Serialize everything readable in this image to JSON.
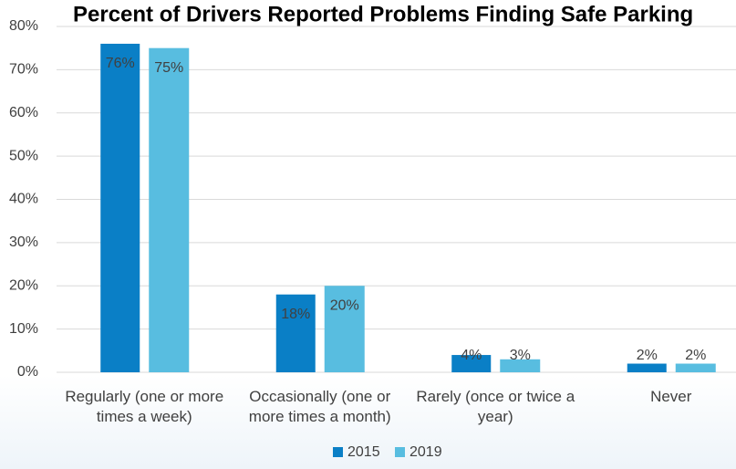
{
  "chart_data": {
    "type": "bar",
    "title": "Percent of Drivers Reported Problems Finding Safe Parking",
    "categories": [
      "Regularly (one or more times a week)",
      "Occasionally (one or more times a month)",
      "Rarely (once or twice a year)",
      "Never"
    ],
    "series": [
      {
        "name": "2015",
        "color": "#0a7fc6",
        "values": [
          76,
          18,
          4,
          2
        ],
        "value_labels": [
          "76%",
          "18%",
          "4%",
          "2%"
        ]
      },
      {
        "name": "2019",
        "color": "#58bde0",
        "values": [
          75,
          20,
          3,
          2
        ],
        "value_labels": [
          "75%",
          "20%",
          "3%",
          "2%"
        ]
      }
    ],
    "ylim": [
      0,
      80
    ],
    "yticks": [
      {
        "value": 0,
        "label": "0%"
      },
      {
        "value": 10,
        "label": "10%"
      },
      {
        "value": 20,
        "label": "20%"
      },
      {
        "value": 30,
        "label": "30%"
      },
      {
        "value": 40,
        "label": "40%"
      },
      {
        "value": 50,
        "label": "50%"
      },
      {
        "value": 60,
        "label": "60%"
      },
      {
        "value": 70,
        "label": "70%"
      },
      {
        "value": 80,
        "label": "80%"
      }
    ],
    "grid": true,
    "legend": "bottom"
  }
}
